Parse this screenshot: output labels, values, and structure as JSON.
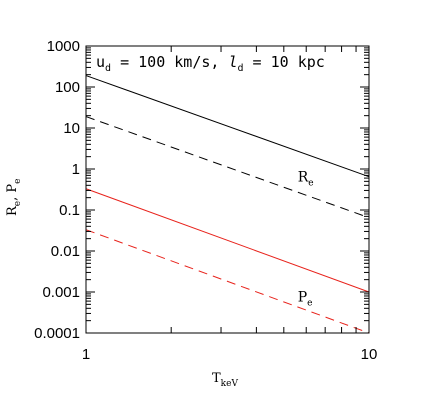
{
  "chart_data": {
    "type": "line",
    "x_scale": "log",
    "y_scale": "log",
    "xlim": [
      1,
      10
    ],
    "ylim": [
      0.0001,
      1000
    ],
    "xlabel": {
      "main": "T",
      "sub": "keV"
    },
    "ylabel": {
      "main": "R",
      "sub1": "e",
      "sep": ", P",
      "sub2": "e"
    },
    "x_tick_labels": [
      {
        "value": 1,
        "label": "1"
      },
      {
        "value": 10,
        "label": "10"
      }
    ],
    "y_tick_labels": [
      {
        "value": 1000,
        "label": "1000"
      },
      {
        "value": 100,
        "label": "100"
      },
      {
        "value": 10,
        "label": "10"
      },
      {
        "value": 1,
        "label": "1"
      },
      {
        "value": 0.1,
        "label": "0.1"
      },
      {
        "value": 0.01,
        "label": "0.01"
      },
      {
        "value": 0.001,
        "label": "0.001"
      },
      {
        "value": 0.0001,
        "label": "0.0001"
      }
    ],
    "annotation": {
      "u": "u",
      "u_sub": "d",
      "u_text": " = 100 km/s, ",
      "l": "l",
      "l_sub": "d",
      "l_text": " = 10 kpc"
    },
    "series": [
      {
        "color": "#000000",
        "dash": "solid",
        "x": [
          1,
          10
        ],
        "y": [
          190,
          0.65
        ]
      },
      {
        "color": "#000000",
        "dash": "dashed",
        "x": [
          1,
          10
        ],
        "y": [
          19,
          0.065
        ]
      },
      {
        "color": "#e8231c",
        "dash": "solid",
        "x": [
          1,
          10
        ],
        "y": [
          0.33,
          0.001
        ]
      },
      {
        "color": "#e8231c",
        "dash": "dashed",
        "x": [
          1,
          10
        ],
        "y": [
          0.033,
          0.0001
        ]
      }
    ],
    "curve_labels": [
      {
        "main": "R",
        "sub": "e",
        "x": 5.6,
        "y": 0.5
      },
      {
        "main": "P",
        "sub": "e",
        "x": 5.6,
        "y": 0.00058
      }
    ]
  }
}
